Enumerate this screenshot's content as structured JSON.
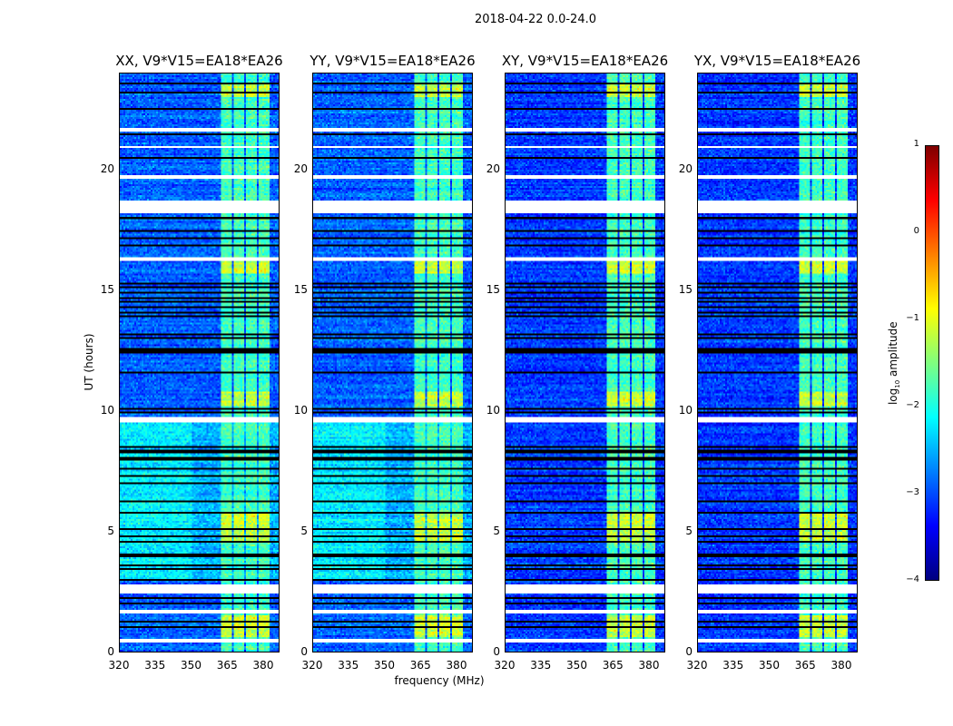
{
  "chart_data": {
    "type": "heatmap",
    "title": "2018-04-22 0.0-24.0",
    "xlabel": "frequency (MHz)",
    "ylabel": "UT (hours)",
    "xlim": [
      320,
      386.5
    ],
    "ylim": [
      0,
      24
    ],
    "xticks": [
      "320",
      "335",
      "350",
      "365",
      "380"
    ],
    "xtick_values": [
      320,
      335,
      350,
      365,
      380
    ],
    "yticks": [
      "0",
      "5",
      "10",
      "15",
      "20"
    ],
    "ytick_values": [
      0,
      5,
      10,
      15,
      20
    ],
    "panels": [
      {
        "title": "XX, V9*V15=EA18*EA26",
        "background_log_amp": -2.9,
        "elevated_background_hours": [
          3,
          9.5
        ],
        "elevated_log_amp": -2.3
      },
      {
        "title": "YY, V9*V15=EA18*EA26",
        "background_log_amp": -2.9,
        "elevated_background_hours": [
          3,
          9.5
        ],
        "elevated_log_amp": -2.3
      },
      {
        "title": "XY, V9*V15=EA18*EA26",
        "background_log_amp": -3.1,
        "elevated_background_hours": [
          0,
          0
        ],
        "elevated_log_amp": -3.1
      },
      {
        "title": "YX, V9*V15=EA18*EA26",
        "background_log_amp": -3.1,
        "elevated_background_hours": [
          0,
          0
        ],
        "elevated_log_amp": -3.1
      }
    ],
    "rfi_subbands_mhz": [
      [
        362.3,
        367.2
      ],
      [
        367.8,
        372.3
      ],
      [
        373.0,
        377.3
      ],
      [
        377.9,
        382.6
      ]
    ],
    "rfi_log_amp": -1.5,
    "flagged_hours": [
      [
        0.35,
        0.55
      ],
      [
        1.55,
        1.7
      ],
      [
        2.4,
        2.8
      ],
      [
        9.5,
        9.7
      ],
      [
        16.2,
        16.35
      ],
      [
        18.2,
        18.7
      ],
      [
        19.6,
        19.8
      ],
      [
        20.9,
        20.95
      ],
      [
        21.6,
        21.75
      ]
    ],
    "dark_row_hours": [
      1.05,
      1.25,
      2.0,
      2.2,
      3.0,
      3.4,
      3.6,
      4.0,
      4.6,
      4.8,
      5.1,
      5.8,
      6.2,
      7.0,
      7.3,
      7.6,
      8.0,
      8.3,
      8.5,
      9.9,
      10.1,
      11.6,
      12.4,
      12.5,
      12.6,
      13.0,
      13.2,
      13.9,
      14.1,
      14.3,
      14.5,
      14.7,
      14.9,
      15.1,
      15.3,
      16.9,
      17.2,
      17.5,
      18.0,
      20.5,
      21.5,
      22.5,
      23.2,
      23.6
    ],
    "colorbar": {
      "label": "log10 amplitude",
      "label_main": "log",
      "label_sub": "10",
      "label_rest": " amplitude",
      "range": [
        -4,
        1
      ],
      "ticks": [
        "1",
        "0",
        "−1",
        "−2",
        "−3",
        "−4"
      ],
      "tick_values": [
        1,
        0,
        -1,
        -2,
        -3,
        -4
      ],
      "colormap": "jet"
    }
  }
}
